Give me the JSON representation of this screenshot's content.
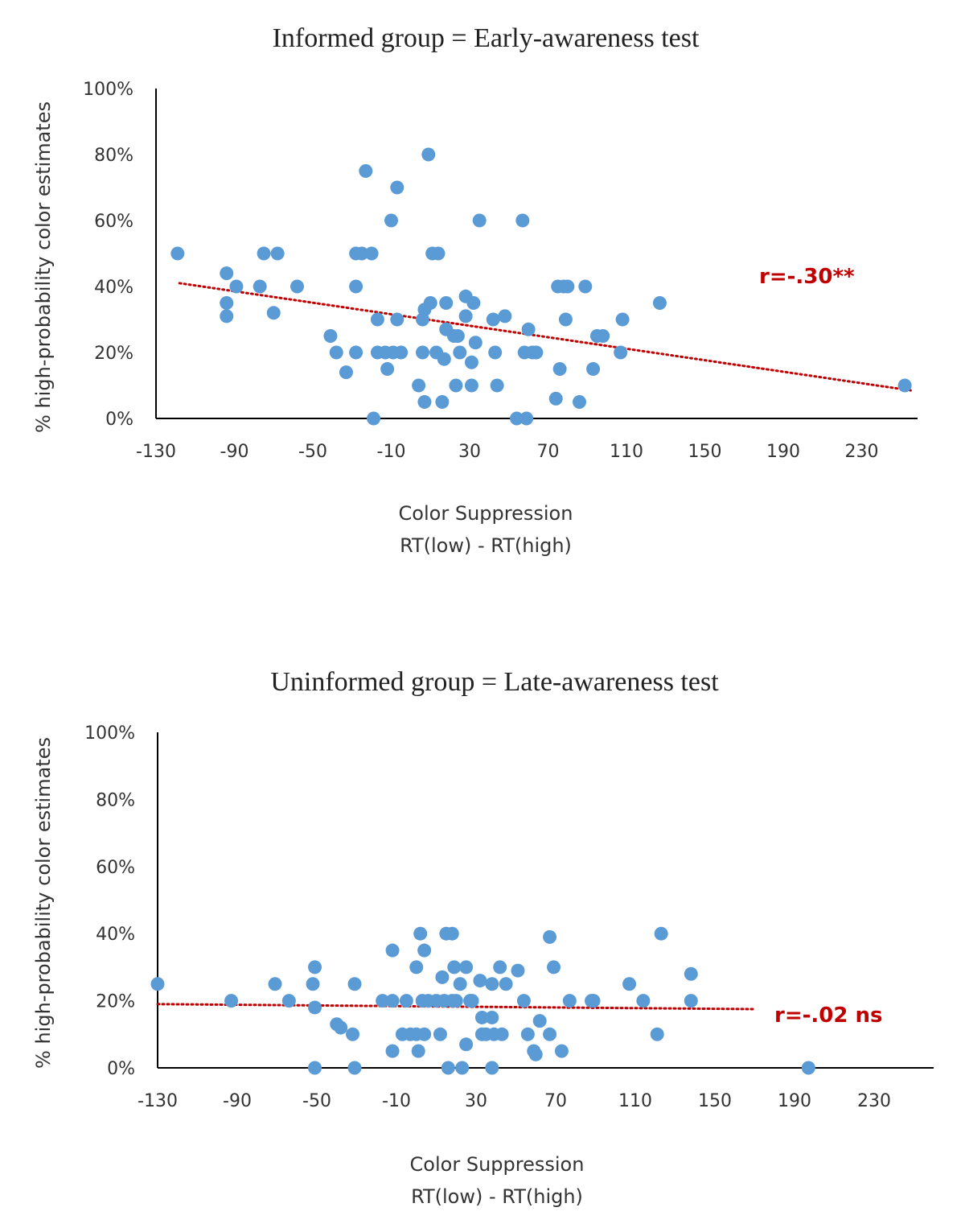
{
  "colors": {
    "point": "#5B9BD5",
    "trend": "#C00000",
    "axis": "#000000",
    "annotation": "#C00000"
  },
  "chart_data": [
    {
      "type": "scatter",
      "title": "Informed group = Early-awareness test",
      "xlabel_line1": "Color Suppression",
      "xlabel_line2": "RT(low) - RT(high)",
      "ylabel": "% high-probability color estimates",
      "xlim": [
        -130,
        260
      ],
      "ylim": [
        0,
        100
      ],
      "x_ticks": [
        "-130",
        "-90",
        "-50",
        "-10",
        "30",
        "70",
        "110",
        "150",
        "190",
        "230"
      ],
      "y_ticks": [
        "0%",
        "20%",
        "40%",
        "60%",
        "80%",
        "100%"
      ],
      "grid": false,
      "annotation": "r=-.30**",
      "trendline": {
        "x": [
          -118,
          255
        ],
        "y": [
          41,
          8.5
        ],
        "style": "dotted"
      },
      "points": [
        [
          -119,
          50
        ],
        [
          -94,
          44
        ],
        [
          -94,
          35
        ],
        [
          -94,
          31
        ],
        [
          -89,
          40
        ],
        [
          -77,
          40
        ],
        [
          -75,
          50
        ],
        [
          -68,
          50
        ],
        [
          -70,
          32
        ],
        [
          -58,
          40
        ],
        [
          -41,
          25
        ],
        [
          -38,
          20
        ],
        [
          -33,
          14
        ],
        [
          -28,
          50
        ],
        [
          -28,
          40
        ],
        [
          -28,
          20
        ],
        [
          -25,
          50
        ],
        [
          -23,
          75
        ],
        [
          -20,
          50
        ],
        [
          -19,
          0
        ],
        [
          -17,
          30
        ],
        [
          -17,
          20
        ],
        [
          -13,
          20
        ],
        [
          -12,
          15
        ],
        [
          -10,
          60
        ],
        [
          -9,
          20
        ],
        [
          -7,
          30
        ],
        [
          -7,
          70
        ],
        [
          -5,
          20
        ],
        [
          4,
          10
        ],
        [
          6,
          30
        ],
        [
          6,
          20
        ],
        [
          7,
          5
        ],
        [
          7,
          33
        ],
        [
          9,
          80
        ],
        [
          10,
          35
        ],
        [
          11,
          50
        ],
        [
          13,
          20
        ],
        [
          14,
          50
        ],
        [
          16,
          5
        ],
        [
          17,
          18
        ],
        [
          18,
          35
        ],
        [
          18,
          27
        ],
        [
          22,
          25
        ],
        [
          23,
          10
        ],
        [
          24,
          25
        ],
        [
          25,
          20
        ],
        [
          28,
          37
        ],
        [
          28,
          31
        ],
        [
          31,
          17
        ],
        [
          31,
          10
        ],
        [
          32,
          35
        ],
        [
          33,
          23
        ],
        [
          35,
          60
        ],
        [
          42,
          30
        ],
        [
          43,
          20
        ],
        [
          44,
          10
        ],
        [
          48,
          31
        ],
        [
          54,
          0
        ],
        [
          57,
          60
        ],
        [
          58,
          20
        ],
        [
          59,
          0
        ],
        [
          60,
          27
        ],
        [
          62,
          20
        ],
        [
          64,
          20
        ],
        [
          74,
          6
        ],
        [
          75,
          40
        ],
        [
          76,
          15
        ],
        [
          78,
          40
        ],
        [
          79,
          30
        ],
        [
          80,
          40
        ],
        [
          86,
          5
        ],
        [
          89,
          40
        ],
        [
          93,
          15
        ],
        [
          95,
          25
        ],
        [
          98,
          25
        ],
        [
          107,
          20
        ],
        [
          108,
          30
        ],
        [
          127,
          35
        ],
        [
          252,
          10
        ]
      ]
    },
    {
      "type": "scatter",
      "title": "Uninformed group = Late-awareness test",
      "xlabel_line1": "Color Suppression",
      "xlabel_line2": "RT(low) - RT(high)",
      "ylabel": "% high-probability color estimates",
      "xlim": [
        -130,
        260
      ],
      "ylim": [
        0,
        100
      ],
      "x_ticks": [
        "-130",
        "-90",
        "-50",
        "-10",
        "30",
        "70",
        "110",
        "150",
        "190",
        "230"
      ],
      "y_ticks": [
        "0%",
        "20%",
        "40%",
        "60%",
        "80%",
        "100%"
      ],
      "grid": false,
      "annotation": "r=-.02 ns",
      "trendline": {
        "x": [
          -130,
          170
        ],
        "y": [
          19,
          17.5
        ],
        "style": "dotted"
      },
      "points": [
        [
          -130,
          25
        ],
        [
          -93,
          20
        ],
        [
          -71,
          25
        ],
        [
          -64,
          20
        ],
        [
          -52,
          25
        ],
        [
          -51,
          30
        ],
        [
          -51,
          18
        ],
        [
          -51,
          0
        ],
        [
          -40,
          13
        ],
        [
          -38,
          12
        ],
        [
          -32,
          10
        ],
        [
          -31,
          25
        ],
        [
          -31,
          0
        ],
        [
          -17,
          20
        ],
        [
          -12,
          5
        ],
        [
          -12,
          35
        ],
        [
          -12,
          20
        ],
        [
          -7,
          10
        ],
        [
          -5,
          20
        ],
        [
          -3,
          10
        ],
        [
          0,
          10
        ],
        [
          0,
          30
        ],
        [
          1,
          5
        ],
        [
          2,
          40
        ],
        [
          3,
          20
        ],
        [
          4,
          10
        ],
        [
          4,
          35
        ],
        [
          6,
          20
        ],
        [
          10,
          20
        ],
        [
          12,
          10
        ],
        [
          13,
          27
        ],
        [
          14,
          20
        ],
        [
          15,
          40
        ],
        [
          16,
          0
        ],
        [
          18,
          20
        ],
        [
          18,
          40
        ],
        [
          19,
          30
        ],
        [
          20,
          20
        ],
        [
          22,
          25
        ],
        [
          23,
          0
        ],
        [
          25,
          30
        ],
        [
          25,
          7
        ],
        [
          27,
          20
        ],
        [
          28,
          20
        ],
        [
          32,
          26
        ],
        [
          33,
          15
        ],
        [
          33,
          10
        ],
        [
          35,
          10
        ],
        [
          38,
          15
        ],
        [
          38,
          25
        ],
        [
          38,
          0
        ],
        [
          39,
          10
        ],
        [
          42,
          30
        ],
        [
          43,
          10
        ],
        [
          45,
          25
        ],
        [
          51,
          29
        ],
        [
          54,
          20
        ],
        [
          56,
          10
        ],
        [
          59,
          5
        ],
        [
          60,
          4
        ],
        [
          62,
          14
        ],
        [
          67,
          10
        ],
        [
          67,
          39
        ],
        [
          69,
          30
        ],
        [
          73,
          5
        ],
        [
          77,
          20
        ],
        [
          88,
          20
        ],
        [
          89,
          20
        ],
        [
          107,
          25
        ],
        [
          114,
          20
        ],
        [
          121,
          10
        ],
        [
          123,
          40
        ],
        [
          138,
          28
        ],
        [
          138,
          20
        ],
        [
          197,
          0
        ]
      ]
    }
  ]
}
